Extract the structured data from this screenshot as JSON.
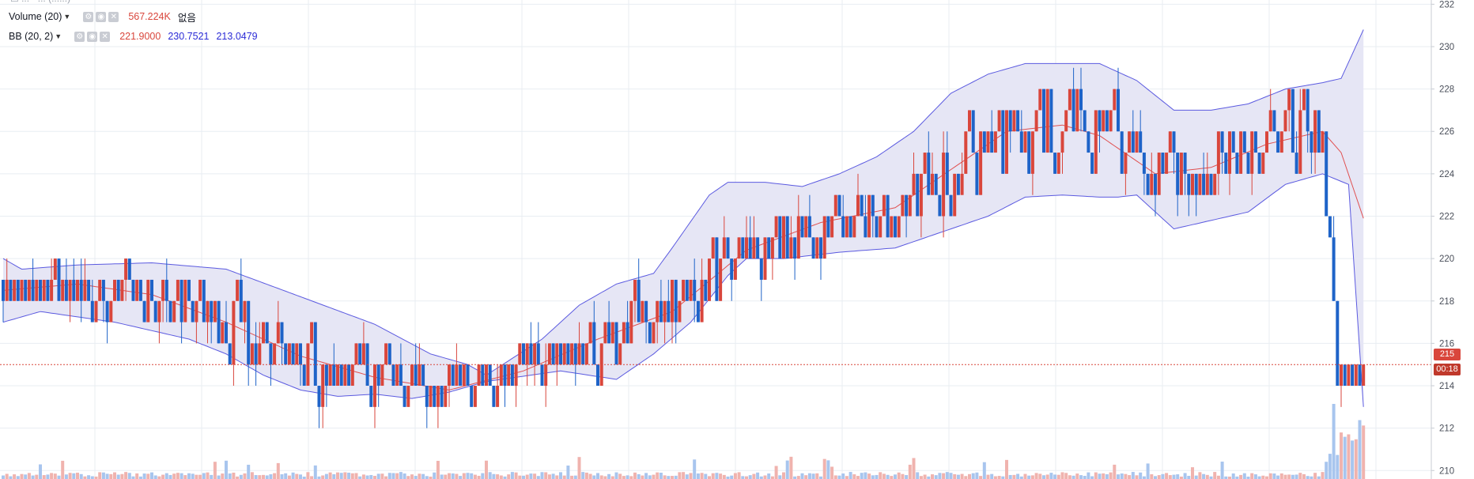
{
  "legend": {
    "top_text": "☐ ...  · ...  (......)",
    "volume": {
      "name": "Volume (20)",
      "value": "567.224K",
      "extra": "없음"
    },
    "bb": {
      "name": "BB (20, 2)",
      "basis": "221.9000",
      "upper": "230.7521",
      "lower": "213.0479"
    }
  },
  "price_tag": {
    "last": "215",
    "countdown": "00:18"
  },
  "colors": {
    "up": "#d9463c",
    "down": "#1e63c8",
    "upper_band": "#5b5ae0",
    "lower_band": "#5b5ae0",
    "basis": "#e05050",
    "band_fill": "#e6e6f5",
    "grid": "#e8edf2",
    "last_price_line": "#d9463c",
    "volume_up": "#f0b3ae",
    "volume_down": "#a8c5ee"
  },
  "chart_data": {
    "type": "candlestick",
    "y_axis_ticks": [
      "210",
      "212",
      "214",
      "216",
      "218",
      "220",
      "222",
      "224",
      "226",
      "228",
      "230",
      "232"
    ],
    "ylim": [
      209.6,
      232.2
    ],
    "last_price": 215,
    "grid": true,
    "bollinger": {
      "upper_x": [
        0,
        5,
        20,
        40,
        60,
        80,
        100,
        115,
        125,
        130,
        145,
        155,
        165,
        175,
        180,
        190,
        195,
        205,
        215,
        225,
        235,
        245,
        255,
        265,
        275,
        285,
        295,
        305,
        315,
        325,
        335,
        345,
        355,
        360,
        366
      ],
      "upper_y": [
        220,
        219.5,
        219.7,
        219.8,
        219.5,
        218.2,
        216.9,
        215.5,
        215,
        214.5,
        216.2,
        217.8,
        218.8,
        219.3,
        220.5,
        223,
        223.6,
        223.6,
        223.4,
        224,
        224.8,
        226,
        227.8,
        228.7,
        229.2,
        229.2,
        229.2,
        228.4,
        227,
        227,
        227.3,
        228,
        228.3,
        228.5,
        230.8
      ],
      "lower_x": [
        0,
        10,
        30,
        50,
        60,
        70,
        80,
        90,
        100,
        110,
        120,
        130,
        150,
        165,
        175,
        185,
        195,
        200,
        210,
        225,
        240,
        255,
        265,
        275,
        285,
        295,
        300,
        305,
        315,
        325,
        335,
        345,
        355,
        362,
        366
      ],
      "lower_y": [
        217,
        217.5,
        217,
        216.2,
        215.5,
        214.5,
        213.8,
        213.5,
        213.6,
        213.4,
        213.7,
        214.2,
        214.7,
        214.3,
        215.5,
        217,
        219.2,
        220,
        220,
        220.3,
        220.5,
        221.4,
        222,
        222.9,
        223,
        222.9,
        222.9,
        223,
        221.4,
        221.8,
        222.2,
        223.5,
        224,
        223.5,
        213
      ],
      "basis_x": [
        0,
        20,
        40,
        60,
        80,
        100,
        120,
        140,
        160,
        180,
        200,
        220,
        240,
        255,
        270,
        285,
        295,
        310,
        325,
        340,
        355,
        360,
        366
      ],
      "basis_y": [
        218.5,
        218.8,
        218.3,
        217,
        215.4,
        214.4,
        213.8,
        214.7,
        216.2,
        217.5,
        220.4,
        221.7,
        222.4,
        224.2,
        226,
        226.3,
        225.8,
        224,
        224.3,
        225.4,
        226,
        225,
        221.9
      ]
    },
    "ohlc_description": "Candles plotted from generated price path following the Bollinger basis; final candles: 222 -> 214 crash, last 215"
  }
}
